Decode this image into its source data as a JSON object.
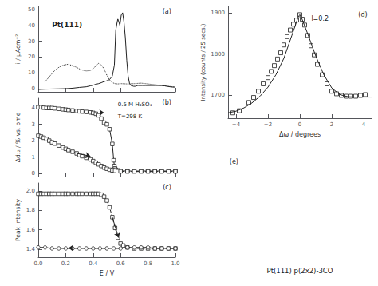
{
  "chart_data": [
    {
      "type": "line",
      "label": "(a)",
      "title": "Pt(111)",
      "ylabel": "i / μAcm⁻²",
      "color": "#222222",
      "grid": false,
      "tick_labels": "y",
      "xlim": [
        0.0,
        1.0
      ],
      "xticks": [
        0.0,
        0.2,
        0.4,
        0.6,
        0.8,
        1.0
      ],
      "ylim": [
        -2,
        52
      ],
      "yticks": [
        0,
        10,
        20,
        30,
        40,
        50
      ],
      "series": [
        {
          "line_style": "solid",
          "x": [
            0.0,
            0.05,
            0.1,
            0.15,
            0.2,
            0.25,
            0.3,
            0.35,
            0.38,
            0.4,
            0.42,
            0.44,
            0.46,
            0.48,
            0.5,
            0.52,
            0.54,
            0.555,
            0.565,
            0.575,
            0.58,
            0.585,
            0.595,
            0.605,
            0.615,
            0.625,
            0.635,
            0.645,
            0.655,
            0.665,
            0.675,
            0.685,
            0.695,
            0.705,
            0.715,
            0.72,
            0.73,
            0.74,
            0.76,
            0.78,
            0.8,
            0.82,
            0.85,
            0.88,
            0.9,
            0.92,
            0.94,
            0.96,
            0.98,
            1.0
          ],
          "values": [
            -0.5,
            -0.3,
            -0.2,
            -0.1,
            0.0,
            0.3,
            0.8,
            1.2,
            1.8,
            2.2,
            2.8,
            3.2,
            3.8,
            4.5,
            5.0,
            5.8,
            8.0,
            15.0,
            37.0,
            42.0,
            44.0,
            43.0,
            40.0,
            46.5,
            48.0,
            42.0,
            32.0,
            18.0,
            8.0,
            3.5,
            2.0,
            1.8,
            1.5,
            1.5,
            1.5,
            2.0,
            2.0,
            2.0,
            2.0,
            2.0,
            2.0,
            2.0,
            2.0,
            2.0,
            2.0,
            1.8,
            1.5,
            1.2,
            1.0,
            1.0
          ]
        },
        {
          "line_style": "dotted",
          "x": [
            0.05,
            0.08,
            0.1,
            0.12,
            0.15,
            0.18,
            0.2,
            0.22,
            0.25,
            0.28,
            0.3,
            0.32,
            0.35,
            0.38,
            0.4,
            0.42,
            0.44,
            0.46,
            0.48,
            0.5,
            0.52,
            0.54,
            0.56,
            0.58,
            0.6,
            0.65,
            0.7,
            0.75,
            0.8,
            0.85,
            0.9,
            0.95,
            1.0
          ],
          "values": [
            4.5,
            7.5,
            9.5,
            11.5,
            13.5,
            14.8,
            15.2,
            15.5,
            14.5,
            13.5,
            12.5,
            11.8,
            11.2,
            11.5,
            12.5,
            14.5,
            16.0,
            15.0,
            12.5,
            8.5,
            5.5,
            3.8,
            3.2,
            3.0,
            3.2,
            3.0,
            3.2,
            3.5,
            3.0,
            2.5,
            2.0,
            1.5,
            1.0
          ]
        }
      ]
    },
    {
      "type": "line",
      "label": "(b)",
      "ylabel": "Δd₁₂ / % vs. pme",
      "annotations": [
        "0.5 M H₂SO₄",
        "T=298 K"
      ],
      "color": "#222222",
      "grid": false,
      "tick_labels": "y",
      "xlim": [
        0.0,
        1.0
      ],
      "xticks": [
        0.0,
        0.2,
        0.4,
        0.6,
        0.8,
        1.0
      ],
      "ylim": [
        -0.2,
        4.6
      ],
      "yticks": [
        0,
        1,
        2,
        3,
        4
      ],
      "arrows": [
        {
          "start": [
            0.36,
            3.72
          ],
          "end": [
            0.48,
            3.72
          ]
        },
        {
          "start": [
            0.28,
            1.22
          ],
          "end": [
            0.38,
            1.05
          ]
        }
      ],
      "series": [
        {
          "line_style": "solid",
          "marker": "square",
          "x": [
            0.0,
            0.02,
            0.04,
            0.06,
            0.08,
            0.1,
            0.12,
            0.15,
            0.18,
            0.2,
            0.22,
            0.25,
            0.28,
            0.3,
            0.32,
            0.35,
            0.38,
            0.4,
            0.42,
            0.44,
            0.46,
            0.48,
            0.5,
            0.52,
            0.54,
            0.55,
            0.555,
            0.56,
            0.565,
            0.58,
            0.6,
            0.65,
            0.7,
            0.75,
            0.8,
            0.85,
            0.9,
            0.95,
            1.0
          ],
          "values": [
            4.05,
            4.05,
            4.02,
            4.0,
            4.0,
            4.0,
            3.98,
            3.95,
            3.92,
            3.9,
            3.88,
            3.85,
            3.82,
            3.8,
            3.78,
            3.76,
            3.73,
            3.7,
            3.65,
            3.55,
            3.35,
            3.1,
            3.0,
            2.7,
            1.8,
            0.8,
            0.45,
            0.3,
            0.22,
            0.18,
            0.15,
            0.14,
            0.14,
            0.14,
            0.14,
            0.14,
            0.14,
            0.14,
            0.14
          ]
        },
        {
          "line_style": "dashed",
          "marker": "square",
          "x": [
            0.0,
            0.02,
            0.04,
            0.06,
            0.08,
            0.1,
            0.12,
            0.15,
            0.18,
            0.2,
            0.22,
            0.25,
            0.28,
            0.3,
            0.32,
            0.35,
            0.38,
            0.4,
            0.42,
            0.44,
            0.46,
            0.48,
            0.5,
            0.52,
            0.54,
            0.56,
            0.58,
            0.6,
            0.65,
            0.7,
            0.75,
            0.8,
            0.85,
            0.9,
            0.95,
            1.0
          ],
          "values": [
            2.3,
            2.25,
            2.18,
            2.1,
            2.0,
            1.9,
            1.82,
            1.7,
            1.58,
            1.5,
            1.42,
            1.32,
            1.22,
            1.12,
            1.05,
            0.95,
            0.85,
            0.75,
            0.65,
            0.55,
            0.45,
            0.35,
            0.28,
            0.22,
            0.18,
            0.15,
            0.13,
            0.12,
            0.11,
            0.11,
            0.11,
            0.11,
            0.11,
            0.11,
            0.11,
            0.11
          ]
        }
      ]
    },
    {
      "type": "line",
      "label": "(c)",
      "ylabel": "Peak Intensity",
      "xlabel": "E / V",
      "color": "#222222",
      "grid": false,
      "xlim": [
        0.0,
        1.0
      ],
      "xticks": [
        {
          "value": 0.0,
          "label": "0.0"
        },
        0.2,
        0.4,
        0.6,
        0.8,
        {
          "value": 1.0,
          "label": "1.0"
        }
      ],
      "ylim": [
        1.32,
        2.08
      ],
      "yticks": [
        1.4,
        1.6,
        1.8,
        {
          "value": 2.0,
          "label": "2.0"
        }
      ],
      "arrows": [
        {
          "start": [
            0.54,
            1.73
          ],
          "end": [
            0.585,
            1.52
          ]
        },
        {
          "start": [
            0.32,
            1.415
          ],
          "end": [
            0.22,
            1.415
          ]
        }
      ],
      "series": [
        {
          "line_style": "dashed",
          "marker": "square",
          "x": [
            0.0,
            0.02,
            0.04,
            0.06,
            0.08,
            0.1,
            0.12,
            0.15,
            0.18,
            0.2,
            0.22,
            0.25,
            0.28,
            0.3,
            0.32,
            0.35,
            0.38,
            0.4,
            0.42,
            0.44,
            0.46,
            0.48,
            0.5,
            0.52,
            0.54,
            0.56,
            0.58,
            0.6,
            0.62,
            0.65,
            0.7,
            0.75,
            0.8,
            0.85,
            0.9,
            0.95,
            1.0
          ],
          "values": [
            1.97,
            1.97,
            1.97,
            1.97,
            1.97,
            1.97,
            1.97,
            1.97,
            1.97,
            1.97,
            1.97,
            1.97,
            1.97,
            1.97,
            1.97,
            1.97,
            1.97,
            1.97,
            1.97,
            1.97,
            1.96,
            1.94,
            1.9,
            1.83,
            1.73,
            1.62,
            1.52,
            1.46,
            1.44,
            1.42,
            1.41,
            1.41,
            1.41,
            1.41,
            1.41,
            1.41,
            1.41
          ]
        },
        {
          "line_style": "solid",
          "marker": "circle",
          "x": [
            0.0,
            0.05,
            0.1,
            0.15,
            0.2,
            0.25,
            0.3,
            0.35,
            0.4,
            0.45,
            0.5,
            0.55,
            0.6,
            0.65,
            0.7,
            0.75,
            0.8,
            0.85,
            0.9,
            0.95,
            1.0
          ],
          "values": [
            1.42,
            1.42,
            1.41,
            1.41,
            1.41,
            1.41,
            1.41,
            1.41,
            1.41,
            1.41,
            1.41,
            1.41,
            1.41,
            1.42,
            1.42,
            1.42,
            1.42,
            1.41,
            1.41,
            1.41,
            1.41
          ]
        }
      ]
    },
    {
      "type": "scatter",
      "label": "(d)",
      "annotation": "l=0.2",
      "ylabel": "Intensity (counts / 25 secs.)",
      "xlabel": "Δω / degrees",
      "color": "#222222",
      "grid": false,
      "xlim": [
        -4.5,
        4.5
      ],
      "xticks": [
        {
          "value": -4,
          "label": "−4"
        },
        {
          "value": -2,
          "label": "−2"
        },
        0,
        2,
        4
      ],
      "ylim": [
        1645,
        1915
      ],
      "yticks": [
        1700,
        1800,
        1900
      ],
      "series": [
        {
          "type": "scatter",
          "marker": "square",
          "x": [
            -4.2,
            -3.8,
            -3.5,
            -3.2,
            -2.9,
            -2.6,
            -2.3,
            -2.0,
            -1.8,
            -1.6,
            -1.4,
            -1.2,
            -1.0,
            -0.8,
            -0.6,
            -0.4,
            -0.2,
            0.0,
            0.15,
            0.3,
            0.5,
            0.7,
            0.9,
            1.1,
            1.4,
            1.7,
            2.0,
            2.3,
            2.6,
            2.9,
            3.2,
            3.5,
            3.8,
            4.1
          ],
          "values": [
            1658,
            1663,
            1672,
            1683,
            1695,
            1710,
            1728,
            1743,
            1758,
            1772,
            1788,
            1803,
            1822,
            1842,
            1858,
            1872,
            1882,
            1895,
            1884,
            1870,
            1845,
            1820,
            1798,
            1775,
            1750,
            1728,
            1710,
            1704,
            1700,
            1698,
            1698,
            1698,
            1700,
            1702
          ]
        },
        {
          "type": "line",
          "line_style": "solid",
          "x": [
            -4.5,
            -4.0,
            -3.5,
            -3.0,
            -2.5,
            -2.0,
            -1.5,
            -1.0,
            -0.5,
            -0.1,
            0.0,
            0.1,
            0.5,
            1.0,
            1.5,
            2.0,
            2.5,
            3.0,
            3.5,
            4.0,
            4.5
          ],
          "values": [
            1658,
            1662,
            1670,
            1682,
            1698,
            1720,
            1750,
            1790,
            1845,
            1890,
            1895,
            1888,
            1848,
            1795,
            1750,
            1718,
            1702,
            1697,
            1696,
            1696,
            1696
          ]
        }
      ]
    },
    {
      "type": "model",
      "title": "Pt(111) p(2x2)-3CO",
      "label": "(e)"
    }
  ]
}
